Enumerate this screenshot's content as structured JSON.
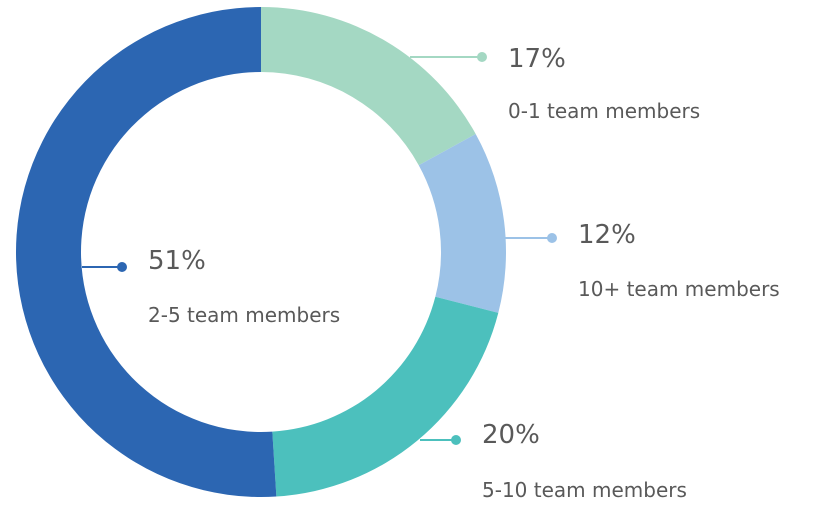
{
  "chart_data": {
    "type": "donut",
    "categories": [
      "0-1 team members",
      "10+ team members",
      "5-10 team members",
      "2-5 team members"
    ],
    "values": [
      17,
      12,
      20,
      51
    ],
    "value_labels": [
      "17%",
      "12%",
      "20%",
      "51%"
    ],
    "colors": [
      "#a4d8c3",
      "#9cc2e7",
      "#4cc0bd",
      "#2c66b2"
    ]
  }
}
